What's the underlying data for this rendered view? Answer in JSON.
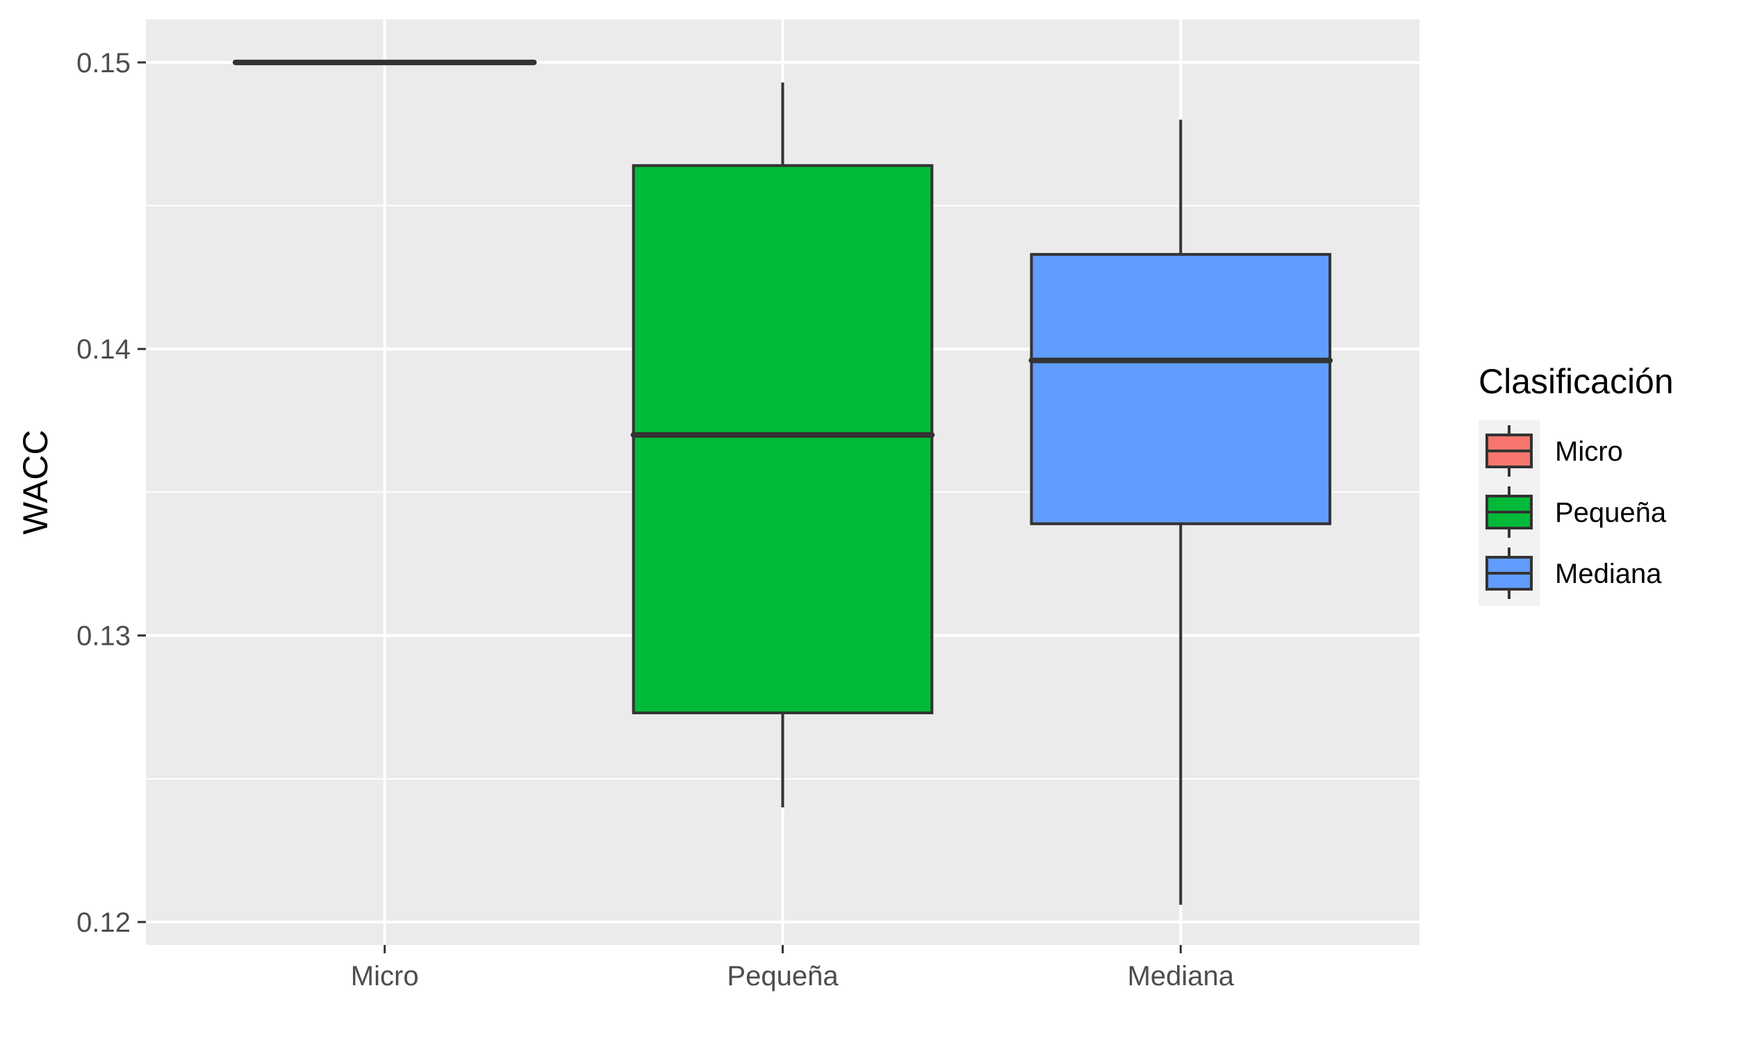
{
  "chart_data": {
    "type": "boxplot",
    "title": "",
    "xlabel": "",
    "ylabel": "WACC",
    "ylim": [
      0.1192,
      0.1515
    ],
    "yticks": [
      0.12,
      0.13,
      0.14,
      0.15
    ],
    "ytick_labels": [
      "0.12",
      "0.13",
      "0.14",
      "0.15"
    ],
    "minor_yticks": [
      0.125,
      0.135,
      0.145
    ],
    "categories": [
      "Micro",
      "Pequeña",
      "Mediana"
    ],
    "grid": true,
    "background": "#ebebeb",
    "legend": {
      "title": "Clasificación",
      "placement": "right",
      "entries": [
        "Micro",
        "Pequeña",
        "Mediana"
      ]
    },
    "boxes": [
      {
        "category": "Micro",
        "color": "#f8766d",
        "whisker_low": 0.15,
        "q1": 0.15,
        "median": 0.15,
        "q3": 0.15,
        "whisker_high": 0.15
      },
      {
        "category": "Pequeña",
        "color": "#00ba38",
        "whisker_low": 0.124,
        "q1": 0.1273,
        "median": 0.137,
        "q3": 0.1464,
        "whisker_high": 0.1493
      },
      {
        "category": "Mediana",
        "color": "#619cff",
        "whisker_low": 0.1206,
        "q1": 0.1339,
        "median": 0.1396,
        "q3": 0.1433,
        "whisker_high": 0.148
      }
    ]
  }
}
